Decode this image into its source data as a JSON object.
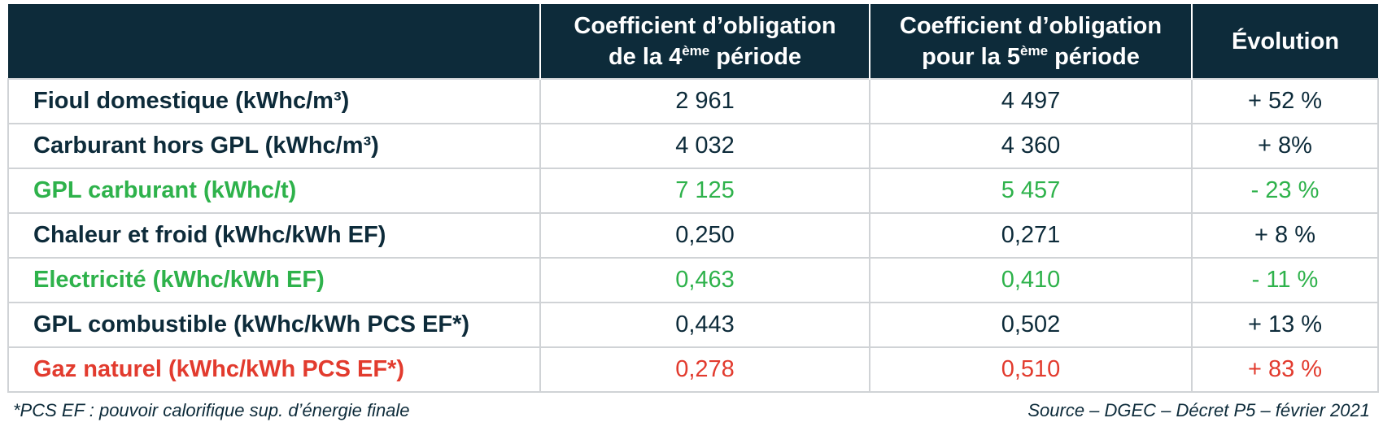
{
  "table": {
    "header": [
      {
        "line1": "Coefficient d’obligation",
        "before": "de la 4",
        "sup": "ème",
        "after": " période"
      },
      {
        "line1": "Coefficient d’obligation",
        "before": "pour la 5",
        "sup": "ème",
        "after": " période"
      },
      {
        "line1": "Évolution"
      }
    ],
    "rows": [
      {
        "color": "#0d2b3a",
        "cells": [
          "Fioul domestique (kWhc/m³)",
          "2 961",
          "4 497",
          "+ 52 %"
        ]
      },
      {
        "color": "#0d2b3a",
        "cells": [
          "Carburant hors GPL (kWhc/m³)",
          "4 032",
          "4 360",
          "+ 8%"
        ]
      },
      {
        "color": "#2eb24b",
        "cells": [
          "GPL carburant (kWhc/t)",
          "7 125",
          "5 457",
          "- 23 %"
        ]
      },
      {
        "color": "#0d2b3a",
        "cells": [
          "Chaleur et froid (kWhc/kWh EF)",
          "0,250",
          "0,271",
          "+ 8 %"
        ]
      },
      {
        "color": "#2eb24b",
        "cells": [
          "Electricité (kWhc/kWh EF)",
          "0,463",
          "0,410",
          "- 11 %"
        ]
      },
      {
        "color": "#0d2b3a",
        "cells": [
          "GPL combustible (kWhc/kWh PCS EF*)",
          "0,443",
          "0,502",
          "+ 13 %"
        ]
      },
      {
        "color": "#e23b2e",
        "cells": [
          "Gaz naturel (kWhc/kWh PCS EF*)",
          "0,278",
          "0,510",
          "+ 83 %"
        ]
      }
    ]
  },
  "footer": {
    "note": "*PCS EF : pouvoir calorifique sup. d’énergie finale",
    "source": "Source – DGEC – Décret P5 – février 2021"
  }
}
